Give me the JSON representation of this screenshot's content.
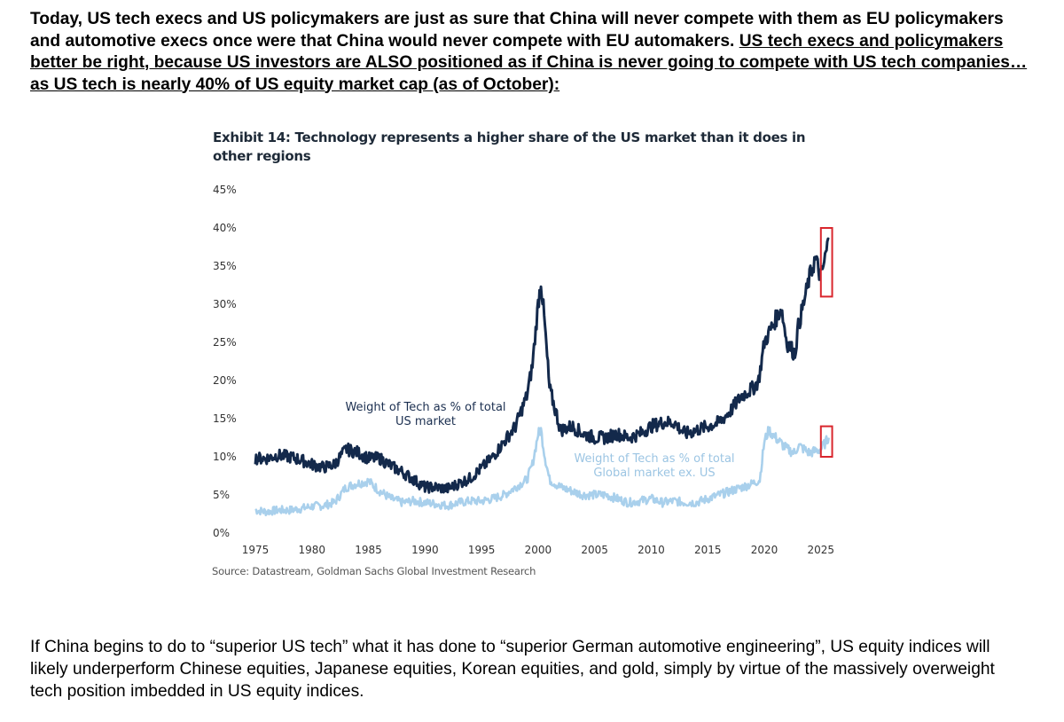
{
  "intro": {
    "plain": "Today, US tech execs and US policymakers are just as sure that China will never compete with them as EU policymakers and automotive execs once were that China would never compete with EU automakers. ",
    "underlined": "US tech execs and policymakers better be right, because US investors are ALSO positioned as if China is never going to compete with US tech companies…as US tech is nearly 40% of US equity market cap (as of October):"
  },
  "outro": {
    "text": "If China begins to do to “superior US tech” what it has done to “superior German automotive engineering”, US equity indices will likely underperform Chinese equities, Japanese equities, Korean equities, and gold, simply by virtue of the massively overweight tech position imbedded in US equity indices."
  },
  "colors": {
    "us_series": "#13294b",
    "global_series": "#a9d0ec",
    "highlight": "#d9262d",
    "annotation_global": "#9cc5e3"
  },
  "chart_data": {
    "type": "line",
    "title": "Exhibit 14: Technology represents a higher share of the US market than it does in other regions",
    "source": "Source: Datastream, Goldman Sachs Global Investment Research",
    "xlabel": "",
    "ylabel": "",
    "xlim": [
      1975,
      2025.8
    ],
    "ylim": [
      0,
      45
    ],
    "x_ticks": [
      1975,
      1980,
      1985,
      1990,
      1995,
      2000,
      2005,
      2010,
      2015,
      2020,
      2025
    ],
    "x_tick_labels": [
      "1975",
      "1980",
      "1985",
      "1990",
      "1995",
      "2000",
      "2005",
      "2010",
      "2015",
      "2020",
      "2025"
    ],
    "y_ticks": [
      0,
      5,
      10,
      15,
      20,
      25,
      30,
      35,
      40,
      45
    ],
    "y_tick_labels": [
      "0%",
      "5%",
      "10%",
      "15%",
      "20%",
      "25%",
      "30%",
      "35%",
      "40%",
      "45%"
    ],
    "grid": false,
    "series": [
      {
        "name": "Weight of Tech as % of total US market",
        "label_lines": [
          "Weight of Tech as % of total",
          "US market"
        ],
        "points": [
          [
            1975,
            9.8
          ],
          [
            1976,
            9.8
          ],
          [
            1977,
            10.2
          ],
          [
            1978,
            10.0
          ],
          [
            1979,
            9.6
          ],
          [
            1980,
            9.0
          ],
          [
            1981,
            8.6
          ],
          [
            1982,
            9.0
          ],
          [
            1983,
            11.0
          ],
          [
            1984,
            10.6
          ],
          [
            1985,
            9.8
          ],
          [
            1986,
            9.8
          ],
          [
            1987,
            8.8
          ],
          [
            1988,
            8.0
          ],
          [
            1989,
            7.0
          ],
          [
            1990,
            6.0
          ],
          [
            1991,
            6.0
          ],
          [
            1992,
            5.8
          ],
          [
            1993,
            6.5
          ],
          [
            1994,
            7.2
          ],
          [
            1995,
            8.5
          ],
          [
            1996,
            10.0
          ],
          [
            1997,
            12.0
          ],
          [
            1998,
            14.0
          ],
          [
            1999,
            18.0
          ],
          [
            1999.5,
            22.0
          ],
          [
            2000,
            30.0
          ],
          [
            2000.25,
            33.0
          ],
          [
            2000.6,
            27.0
          ],
          [
            2001,
            19.0
          ],
          [
            2002,
            13.5
          ],
          [
            2003,
            14.0
          ],
          [
            2004,
            13.0
          ],
          [
            2005,
            12.5
          ],
          [
            2006,
            12.5
          ],
          [
            2007,
            13.0
          ],
          [
            2008,
            12.5
          ],
          [
            2009,
            13.0
          ],
          [
            2010,
            14.0
          ],
          [
            2011,
            14.5
          ],
          [
            2012,
            14.5
          ],
          [
            2013,
            13.0
          ],
          [
            2014,
            13.5
          ],
          [
            2015,
            14.0
          ],
          [
            2016,
            14.5
          ],
          [
            2017,
            16.0
          ],
          [
            2018,
            18.0
          ],
          [
            2019,
            19.0
          ],
          [
            2019.5,
            20.0
          ],
          [
            2020,
            25.0
          ],
          [
            2021,
            28.0
          ],
          [
            2021.5,
            29.5
          ],
          [
            2022,
            25.0
          ],
          [
            2022.7,
            23.5
          ],
          [
            2023,
            27.0
          ],
          [
            2024,
            33.5
          ],
          [
            2024.5,
            36.0
          ],
          [
            2025,
            33.5
          ],
          [
            2025.3,
            35.5
          ],
          [
            2025.7,
            38.5
          ]
        ]
      },
      {
        "name": "Weight of Tech as % of total Global market ex. US",
        "label_lines": [
          "Weight of Tech as % of total",
          "Global market ex. US"
        ],
        "points": [
          [
            1975,
            3.0
          ],
          [
            1976,
            2.8
          ],
          [
            1977,
            3.0
          ],
          [
            1978,
            3.0
          ],
          [
            1979,
            3.2
          ],
          [
            1980,
            3.5
          ],
          [
            1981,
            3.6
          ],
          [
            1982,
            4.0
          ],
          [
            1983,
            6.0
          ],
          [
            1984,
            6.5
          ],
          [
            1985,
            6.8
          ],
          [
            1986,
            5.5
          ],
          [
            1987,
            4.5
          ],
          [
            1988,
            4.0
          ],
          [
            1989,
            4.2
          ],
          [
            1990,
            4.0
          ],
          [
            1991,
            3.8
          ],
          [
            1992,
            3.6
          ],
          [
            1993,
            4.0
          ],
          [
            1994,
            4.2
          ],
          [
            1995,
            4.2
          ],
          [
            1996,
            4.5
          ],
          [
            1997,
            5.0
          ],
          [
            1998,
            6.0
          ],
          [
            1999,
            7.0
          ],
          [
            1999.5,
            9.0
          ],
          [
            2000,
            13.0
          ],
          [
            2000.25,
            13.5
          ],
          [
            2000.6,
            10.0
          ],
          [
            2001,
            7.0
          ],
          [
            2002,
            6.0
          ],
          [
            2003,
            5.5
          ],
          [
            2004,
            5.0
          ],
          [
            2005,
            5.0
          ],
          [
            2006,
            5.0
          ],
          [
            2007,
            4.5
          ],
          [
            2008,
            4.0
          ],
          [
            2009,
            4.2
          ],
          [
            2010,
            4.5
          ],
          [
            2011,
            4.0
          ],
          [
            2012,
            4.2
          ],
          [
            2013,
            4.0
          ],
          [
            2014,
            4.0
          ],
          [
            2015,
            4.5
          ],
          [
            2016,
            5.0
          ],
          [
            2017,
            5.5
          ],
          [
            2018,
            6.0
          ],
          [
            2019,
            6.5
          ],
          [
            2019.6,
            7.0
          ],
          [
            2020,
            12.0
          ],
          [
            2020.4,
            13.5
          ],
          [
            2021,
            12.5
          ],
          [
            2022,
            11.0
          ],
          [
            2022.7,
            10.5
          ],
          [
            2023,
            11.5
          ],
          [
            2024,
            10.5
          ],
          [
            2025,
            11.0
          ],
          [
            2025.7,
            12.5
          ]
        ]
      }
    ],
    "annotations": [
      {
        "series": 0,
        "type": "highlight-box",
        "x_range": [
          2025,
          2026
        ],
        "y_range": [
          31,
          40
        ]
      },
      {
        "series": 1,
        "type": "highlight-box",
        "x_range": [
          2025,
          2026
        ],
        "y_range": [
          10,
          14
        ]
      }
    ]
  }
}
